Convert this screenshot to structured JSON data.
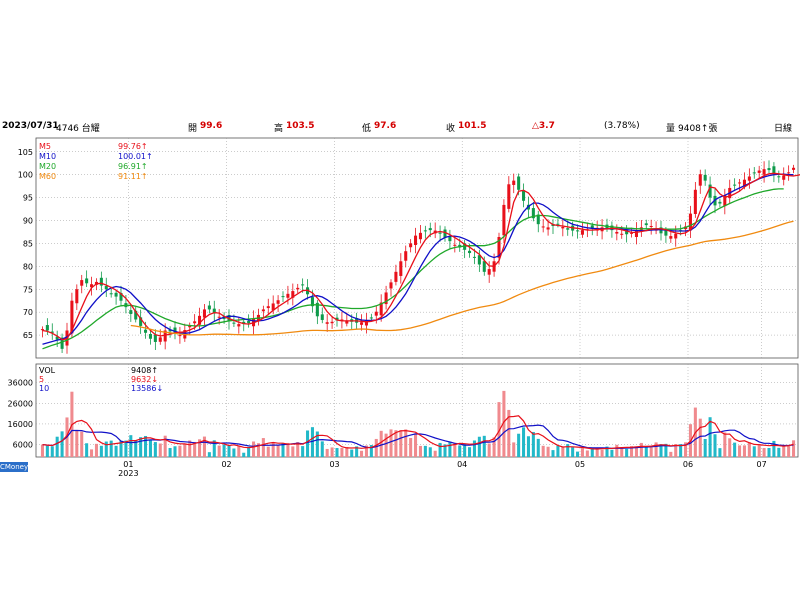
{
  "header": {
    "date": "2023/07/31",
    "stock": "4746 台耀",
    "open_label": "開",
    "open": "99.6",
    "high_label": "高",
    "high": "103.5",
    "low_label": "低",
    "low": "97.6",
    "close_label": "收",
    "close": "101.5",
    "change": "△3.7",
    "change_pct": "(3.78%)",
    "volume_label": "量",
    "volume": "9408↑張",
    "period": "日線"
  },
  "brand": "CMoney",
  "colors": {
    "up": "#e8101a",
    "down": "#0e9a4a",
    "ma5": "#e8101a",
    "ma10": "#1010c8",
    "ma20": "#1fa82a",
    "ma60": "#f08a10",
    "vol_up": "#f08a8e",
    "vol_down": "#22b8c8",
    "grid": "#9a9a9a"
  },
  "chart_data": [
    {
      "type": "candlestick",
      "ylim": [
        60,
        108
      ],
      "yticks": [
        65,
        70,
        75,
        80,
        85,
        90,
        95,
        100,
        105
      ],
      "x_labels": [
        "01",
        "02",
        "03",
        "04",
        "05",
        "06",
        "07"
      ],
      "x_sublabel": "2023",
      "legend": [
        {
          "name": "M5",
          "value": "99.76↑"
        },
        {
          "name": "M10",
          "value": "100.01↑"
        },
        {
          "name": "M20",
          "value": "96.91↑"
        },
        {
          "name": "M60",
          "value": "91.11↑"
        }
      ],
      "close": [
        66.3,
        66.0,
        65.5,
        64.0,
        62.0,
        66.0,
        72.5,
        75.0,
        77.0,
        76.3,
        76.1,
        76.6,
        75.8,
        75.0,
        73.9,
        73.4,
        72.5,
        71.1,
        69.6,
        68.4,
        67.0,
        65.5,
        64.2,
        63.5,
        64.5,
        66.0,
        65.8,
        65.3,
        65.0,
        66.1,
        67.0,
        68.0,
        69.2,
        70.6,
        70.6,
        69.7,
        69.0,
        68.5,
        68.0,
        67.7,
        67.4,
        67.4,
        67.6,
        68.6,
        69.4,
        70.6,
        71.3,
        71.9,
        72.6,
        73.3,
        74.0,
        74.6,
        75.3,
        76.0,
        73.9,
        71.3,
        69.1,
        68.3,
        67.8,
        67.9,
        68.2,
        68.4,
        68.2,
        67.9,
        67.7,
        67.8,
        68.2,
        68.7,
        70.1,
        72.1,
        74.3,
        76.5,
        78.8,
        81.1,
        83.3,
        85.0,
        86.7,
        87.3,
        87.7,
        87.9,
        87.8,
        87.2,
        86.3,
        85.5,
        84.7,
        84.1,
        83.6,
        82.9,
        82.0,
        80.4,
        78.8,
        79.4,
        81.1,
        86.4,
        93.4,
        97.9,
        98.7,
        96.7,
        94.3,
        92.4,
        90.5,
        89.2,
        88.7,
        88.5,
        88.8,
        89.1,
        88.6,
        88.0,
        87.8,
        87.8,
        87.9,
        88.1,
        88.2,
        88.4,
        88.5,
        88.3,
        87.9,
        87.5,
        87.1,
        87.0,
        87.3,
        87.9,
        88.5,
        89.0,
        88.8,
        88.0,
        87.2,
        86.7,
        86.6,
        87.1,
        87.8,
        88.7,
        91.5,
        96.7,
        100.1,
        98.7,
        95.0,
        93.3,
        93.7,
        95.5,
        97.1,
        97.8,
        98.3,
        98.9,
        99.6,
        100.4,
        100.9,
        101.2,
        101.0,
        100.1,
        99.6,
        99.8,
        100.5,
        101.5
      ],
      "ma5": [
        66.0,
        65.8,
        65.4,
        64.8,
        64.0,
        64.2,
        66.0,
        68.5,
        71.0,
        73.4,
        75.3,
        76.2,
        76.3,
        75.9,
        75.4,
        74.8,
        74.0,
        73.0,
        71.7,
        70.1,
        68.6,
        67.2,
        66.0,
        65.1,
        64.8,
        65.0,
        65.2,
        65.5,
        65.6,
        65.7,
        66.1,
        66.6,
        67.6,
        68.7,
        69.5,
        69.9,
        69.8,
        69.1,
        68.6,
        68.2,
        67.8,
        67.5,
        67.4,
        67.7,
        68.1,
        68.7,
        69.5,
        70.4,
        71.2,
        71.9,
        72.6,
        73.3,
        74.0,
        74.7,
        74.8,
        74.2,
        73.1,
        71.7,
        70.1,
        69.0,
        68.3,
        68.1,
        68.1,
        68.1,
        68.1,
        68.0,
        67.9,
        68.0,
        68.3,
        68.9,
        70.0,
        71.6,
        73.5,
        75.5,
        77.6,
        79.8,
        82.0,
        84.1,
        85.8,
        86.9,
        87.4,
        87.6,
        87.4,
        86.9,
        86.3,
        85.6,
        84.8,
        84.2,
        83.4,
        82.6,
        81.3,
        80.1,
        80.0,
        81.2,
        84.4,
        89.2,
        94.0,
        96.4,
        96.6,
        96.0,
        94.6,
        92.7,
        91.0,
        89.8,
        89.1,
        88.9,
        88.8,
        88.6,
        88.4,
        88.3,
        88.1,
        87.9,
        87.9,
        88.0,
        88.1,
        88.2,
        88.3,
        88.2,
        88.0,
        87.7,
        87.4,
        87.4,
        87.6,
        87.8,
        88.1,
        88.2,
        88.2,
        88.0,
        87.6,
        87.3,
        87.1,
        87.3,
        88.0,
        89.3,
        92.1,
        95.0,
        97.3,
        97.1,
        95.8,
        95.1,
        95.3,
        95.8,
        96.4,
        97.3,
        98.0,
        98.6,
        99.2,
        99.8,
        100.2,
        100.3,
        100.2,
        100.0,
        99.8,
        99.7,
        99.9,
        100.2
      ],
      "ma10": [
        63.0,
        63.3,
        63.6,
        63.9,
        64.1,
        64.6,
        65.5,
        66.8,
        68.3,
        70.0,
        71.4,
        72.7,
        73.8,
        74.7,
        75.3,
        75.6,
        75.4,
        75.0,
        74.2,
        73.1,
        72.0,
        70.8,
        69.5,
        68.4,
        67.5,
        66.8,
        66.2,
        65.8,
        65.5,
        65.4,
        65.5,
        65.8,
        66.2,
        66.8,
        67.4,
        68.0,
        68.5,
        68.9,
        69.1,
        69.1,
        68.9,
        68.6,
        68.3,
        68.1,
        68.1,
        68.2,
        68.5,
        68.9,
        69.3,
        69.8,
        70.4,
        71.0,
        71.7,
        72.5,
        73.1,
        73.5,
        73.6,
        73.3,
        72.7,
        71.9,
        71.1,
        70.3,
        69.6,
        69.0,
        68.6,
        68.3,
        68.2,
        68.2,
        68.3,
        68.6,
        69.1,
        70.0,
        71.1,
        72.5,
        74.0,
        75.9,
        77.9,
        79.9,
        81.7,
        83.4,
        84.7,
        85.7,
        86.3,
        86.6,
        86.6,
        86.4,
        86.0,
        85.5,
        84.8,
        84.0,
        83.1,
        82.3,
        81.9,
        82.3,
        83.5,
        85.6,
        88.0,
        90.2,
        91.9,
        93.1,
        93.8,
        93.8,
        93.4,
        92.7,
        91.8,
        91.0,
        90.3,
        89.7,
        89.2,
        88.9,
        88.6,
        88.4,
        88.3,
        88.2,
        88.2,
        88.2,
        88.2,
        88.2,
        88.1,
        88.0,
        87.9,
        87.8,
        87.8,
        87.8,
        87.9,
        88.0,
        88.0,
        87.9,
        87.8,
        87.7,
        87.7,
        87.7,
        87.9,
        88.6,
        89.9,
        91.7,
        93.4,
        94.5,
        95.1,
        95.5,
        96.0,
        96.6,
        97.1,
        97.6,
        98.1,
        98.6,
        99.1,
        99.5,
        99.8,
        100.0,
        100.1,
        100.1,
        100.0,
        100.0
      ],
      "ma20": [
        62.0,
        62.4,
        62.8,
        63.1,
        63.5,
        63.9,
        64.4,
        65.0,
        65.7,
        66.5,
        67.3,
        68.2,
        69.0,
        69.8,
        70.5,
        71.1,
        71.4,
        71.5,
        71.5,
        71.3,
        71.0,
        70.6,
        70.1,
        69.6,
        69.1,
        68.6,
        68.2,
        67.8,
        67.5,
        67.2,
        67.1,
        67.0,
        67.0,
        67.1,
        67.3,
        67.5,
        67.7,
        67.9,
        68.1,
        68.2,
        68.3,
        68.4,
        68.5,
        68.6,
        68.7,
        68.8,
        69.0,
        69.2,
        69.5,
        69.8,
        70.2,
        70.6,
        71.0,
        71.3,
        71.5,
        71.6,
        71.6,
        71.5,
        71.4,
        71.2,
        71.1,
        71.0,
        70.9,
        70.8,
        70.8,
        70.8,
        70.9,
        71.1,
        71.4,
        71.8,
        72.3,
        73.0,
        73.8,
        74.7,
        75.7,
        76.8,
        77.9,
        79.0,
        80.0,
        81.0,
        81.9,
        82.7,
        83.3,
        83.8,
        84.1,
        84.3,
        84.4,
        84.5,
        84.5,
        84.5,
        84.5,
        84.7,
        85.0,
        85.6,
        86.5,
        87.5,
        88.5,
        89.4,
        90.1,
        90.6,
        90.9,
        91.1,
        91.1,
        91.0,
        90.8,
        90.6,
        90.4,
        90.2,
        90.0,
        89.8,
        89.6,
        89.4,
        89.2,
        89.0,
        88.9,
        88.7,
        88.6,
        88.5,
        88.4,
        88.3,
        88.3,
        88.2,
        88.2,
        88.2,
        88.2,
        88.2,
        88.2,
        88.1,
        88.1,
        88.1,
        88.2,
        88.5,
        88.9,
        89.5,
        90.2,
        90.9,
        91.5,
        92.1,
        92.7,
        93.2,
        93.7,
        94.2,
        94.6,
        95.0,
        95.4,
        95.8,
        96.1,
        96.4,
        96.6,
        96.8,
        96.9,
        96.9
      ]
    },
    {
      "type": "bar",
      "title": "VOL",
      "ylim": [
        0,
        45000
      ],
      "yticks": [
        6000,
        16000,
        26000,
        36000
      ],
      "legend": [
        {
          "name": "VOL",
          "value": "9408↑"
        },
        {
          "name": "5",
          "value": "9632↓"
        },
        {
          "name": "10",
          "value": "13586↓"
        }
      ]
    }
  ]
}
